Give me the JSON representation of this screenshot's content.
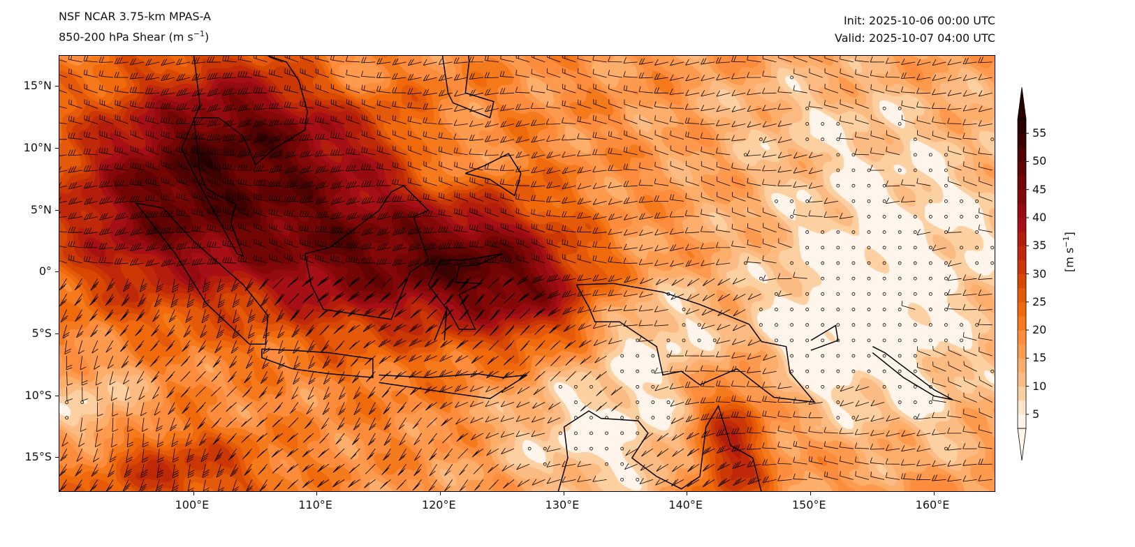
{
  "header": {
    "model": "NSF NCAR 3.75-km MPAS-A",
    "field": "850-200 hPa Shear (m s",
    "field_sup": "−1",
    "field_close": ")",
    "init": "Init: 2025-10-06 00:00 UTC",
    "valid": "Valid: 2025-10-07 04:00 UTC"
  },
  "map": {
    "lon_range": [
      89.1,
      165.0
    ],
    "lat_range": [
      -17.8,
      17.5
    ],
    "lon_ticks": [
      {
        "value": 100,
        "label": "100°E"
      },
      {
        "value": 110,
        "label": "110°E"
      },
      {
        "value": 120,
        "label": "120°E"
      },
      {
        "value": 130,
        "label": "130°E"
      },
      {
        "value": 140,
        "label": "140°E"
      },
      {
        "value": 150,
        "label": "150°E"
      },
      {
        "value": 160,
        "label": "160°E"
      }
    ],
    "lat_ticks": [
      {
        "value": 15,
        "label": "15°N"
      },
      {
        "value": 10,
        "label": "10°N"
      },
      {
        "value": 5,
        "label": "5°N"
      },
      {
        "value": 0,
        "label": "0°"
      },
      {
        "value": -5,
        "label": "5°S"
      },
      {
        "value": -10,
        "label": "10°S"
      },
      {
        "value": -15,
        "label": "15°S"
      }
    ]
  },
  "colorbar": {
    "label": "[m s",
    "label_sup": "−1",
    "label_close": "]",
    "min": 2.5,
    "max": 57.5,
    "ticks": [
      {
        "value": 5,
        "label": "5"
      },
      {
        "value": 10,
        "label": "10"
      },
      {
        "value": 15,
        "label": "15"
      },
      {
        "value": 20,
        "label": "20"
      },
      {
        "value": 25,
        "label": "25"
      },
      {
        "value": 30,
        "label": "30"
      },
      {
        "value": 35,
        "label": "35"
      },
      {
        "value": 40,
        "label": "40"
      },
      {
        "value": 45,
        "label": "45"
      },
      {
        "value": 50,
        "label": "50"
      },
      {
        "value": 55,
        "label": "55"
      }
    ],
    "colors": [
      "#fff5eb",
      "#fee6ce",
      "#fdd0a2",
      "#fdbb84",
      "#fdae6b",
      "#fd9a4e",
      "#fd8d3c",
      "#f57a1c",
      "#f06a0c",
      "#e55a0a",
      "#d94801",
      "#cc3805",
      "#c0280a",
      "#b41c0c",
      "#a50f15",
      "#960b0f",
      "#850808",
      "#740505",
      "#620303",
      "#500202",
      "#3c0101",
      "#280000"
    ]
  }
}
